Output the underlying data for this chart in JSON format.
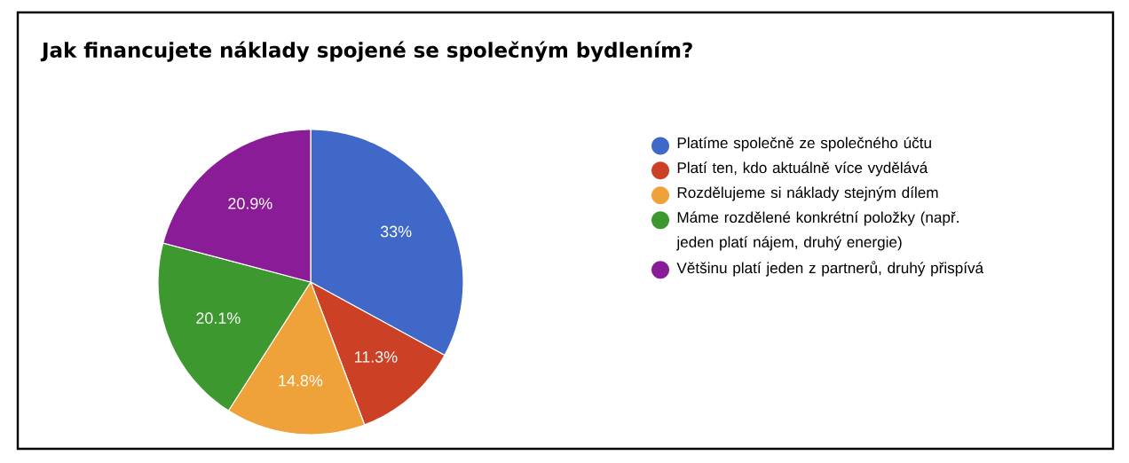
{
  "chart_data": {
    "type": "pie",
    "title": "Jak financujete náklady spojené se společným bydlením?",
    "categories": [
      "Platíme společně ze společného účtu",
      "Platí ten, kdo aktuálně více vydělává",
      "Rozdělujeme si náklady stejným dílem",
      "Máme rozdělené konkrétní položky (např. jeden platí nájem, druhý energie)",
      "Většinu platí jeden z partnerů, druhý přispívá"
    ],
    "values": [
      33,
      11.3,
      14.8,
      20.1,
      20.9
    ],
    "colors": [
      "#3f68c9",
      "#cc4125",
      "#f0a23a",
      "#3c982f",
      "#8b1c97"
    ],
    "value_labels": [
      "33%",
      "11.3%",
      "14.8%",
      "20.1%",
      "20.9%"
    ],
    "legend": "right"
  }
}
